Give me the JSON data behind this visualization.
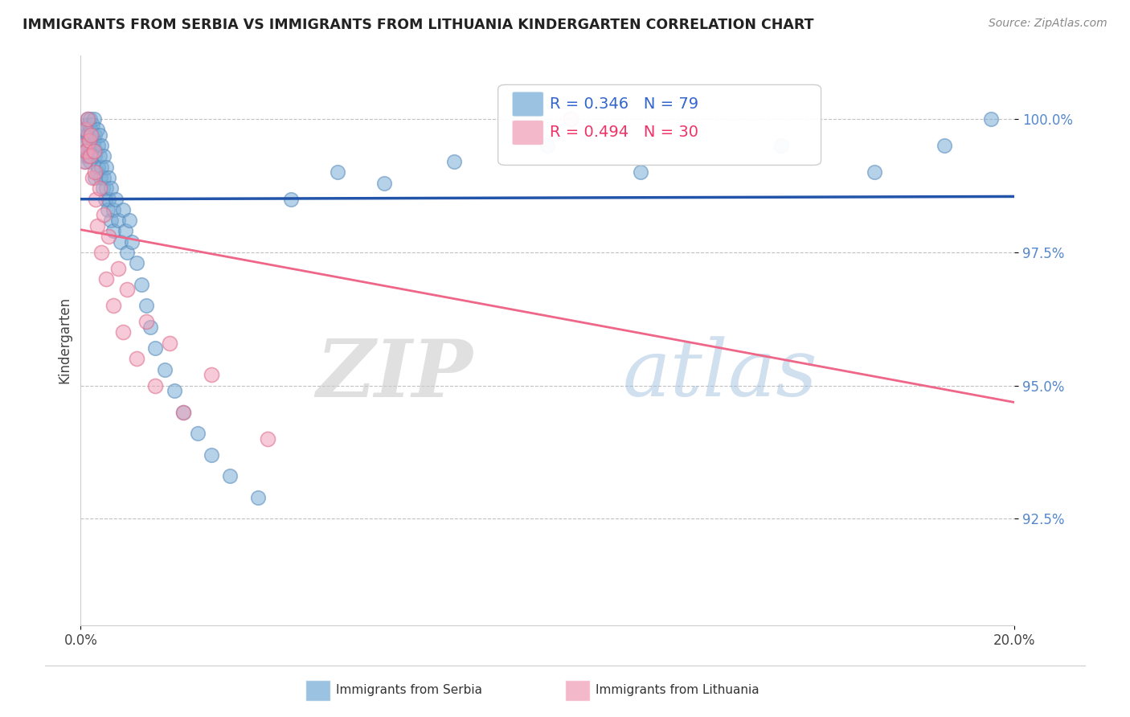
{
  "title": "IMMIGRANTS FROM SERBIA VS IMMIGRANTS FROM LITHUANIA KINDERGARTEN CORRELATION CHART",
  "source": "Source: ZipAtlas.com",
  "ylabel": "Kindergarten",
  "ytick_vals": [
    92.5,
    95.0,
    97.5,
    100.0
  ],
  "ytick_labels": [
    "92.5%",
    "95.0%",
    "97.5%",
    "100.0%"
  ],
  "xlim": [
    0.0,
    20.0
  ],
  "ylim": [
    90.5,
    101.2
  ],
  "serbia_color": "#7aaed6",
  "serbia_edge_color": "#5588bb",
  "lithuania_color": "#f0a0b8",
  "lithuania_edge_color": "#dd6688",
  "serbia_line_color": "#2255aa",
  "lithuania_line_color": "#ee6688",
  "serbia_R": 0.346,
  "serbia_N": 79,
  "lithuania_R": 0.494,
  "lithuania_N": 30,
  "legend_serbia": "Immigrants from Serbia",
  "legend_lithuania": "Immigrants from Lithuania",
  "watermark_zip": "ZIP",
  "watermark_atlas": "atlas",
  "serbia_x": [
    0.05,
    0.05,
    0.08,
    0.08,
    0.1,
    0.1,
    0.1,
    0.12,
    0.12,
    0.15,
    0.15,
    0.15,
    0.18,
    0.18,
    0.2,
    0.2,
    0.2,
    0.22,
    0.22,
    0.25,
    0.25,
    0.28,
    0.28,
    0.3,
    0.3,
    0.3,
    0.32,
    0.35,
    0.35,
    0.38,
    0.38,
    0.4,
    0.4,
    0.42,
    0.45,
    0.45,
    0.48,
    0.5,
    0.5,
    0.52,
    0.55,
    0.55,
    0.58,
    0.6,
    0.6,
    0.65,
    0.65,
    0.7,
    0.7,
    0.75,
    0.8,
    0.85,
    0.9,
    0.95,
    1.0,
    1.05,
    1.1,
    1.2,
    1.3,
    1.4,
    1.5,
    1.6,
    1.8,
    2.0,
    2.2,
    2.5,
    2.8,
    3.2,
    3.8,
    4.5,
    5.5,
    6.5,
    8.0,
    10.0,
    12.0,
    15.0,
    17.0,
    18.5,
    19.5
  ],
  "serbia_y": [
    99.8,
    99.5,
    99.7,
    99.3,
    99.9,
    99.6,
    99.2,
    99.8,
    99.4,
    100.0,
    99.7,
    99.3,
    99.9,
    99.5,
    100.0,
    99.6,
    99.2,
    99.8,
    99.4,
    99.9,
    99.5,
    100.0,
    99.6,
    99.3,
    98.9,
    99.7,
    99.4,
    99.0,
    99.8,
    99.5,
    99.1,
    99.7,
    99.3,
    98.9,
    99.5,
    99.1,
    98.7,
    99.3,
    98.9,
    98.5,
    99.1,
    98.7,
    98.3,
    98.9,
    98.5,
    98.1,
    98.7,
    98.3,
    97.9,
    98.5,
    98.1,
    97.7,
    98.3,
    97.9,
    97.5,
    98.1,
    97.7,
    97.3,
    96.9,
    96.5,
    96.1,
    95.7,
    95.3,
    94.9,
    94.5,
    94.1,
    93.7,
    93.3,
    92.9,
    98.5,
    99.0,
    98.8,
    99.2,
    99.5,
    99.0,
    99.5,
    99.0,
    99.5,
    100.0
  ],
  "lithuania_x": [
    0.05,
    0.08,
    0.1,
    0.12,
    0.15,
    0.18,
    0.2,
    0.22,
    0.25,
    0.28,
    0.3,
    0.32,
    0.35,
    0.4,
    0.45,
    0.5,
    0.55,
    0.6,
    0.7,
    0.8,
    0.9,
    1.0,
    1.2,
    1.4,
    1.6,
    1.9,
    2.2,
    2.8,
    4.0,
    10.5
  ],
  "lithuania_y": [
    99.5,
    99.2,
    99.8,
    99.4,
    100.0,
    99.6,
    99.3,
    99.7,
    98.9,
    99.4,
    99.0,
    98.5,
    98.0,
    98.7,
    97.5,
    98.2,
    97.0,
    97.8,
    96.5,
    97.2,
    96.0,
    96.8,
    95.5,
    96.2,
    95.0,
    95.8,
    94.5,
    95.2,
    94.0,
    100.0
  ]
}
